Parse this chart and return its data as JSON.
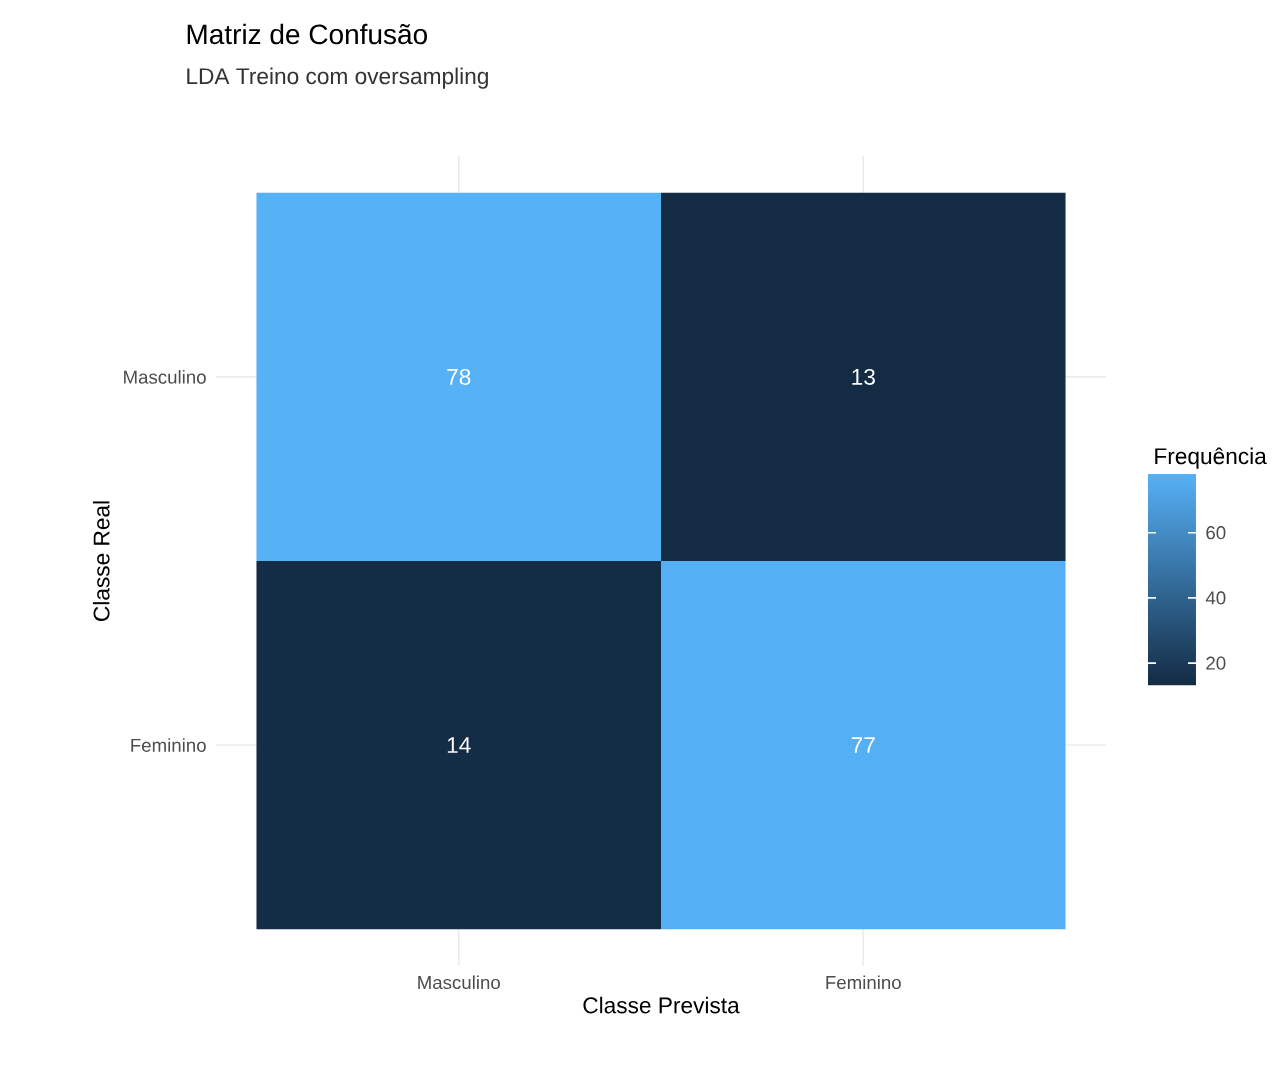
{
  "chart_data": {
    "type": "heatmap",
    "title": "Matriz de Confusão",
    "subtitle": "LDA Treino com oversampling",
    "xlabel": "Classe Prevista",
    "ylabel": "Classe Real",
    "clabel": "Frequência",
    "categories": [
      "Masculino",
      "Feminino"
    ],
    "y_categories": [
      "Masculino",
      "Feminino"
    ],
    "cells": [
      [
        78,
        13
      ],
      [
        14,
        77
      ]
    ],
    "clim": [
      13,
      78
    ],
    "cticks": [
      20,
      40,
      60
    ],
    "data_labels": true,
    "grid": true
  }
}
